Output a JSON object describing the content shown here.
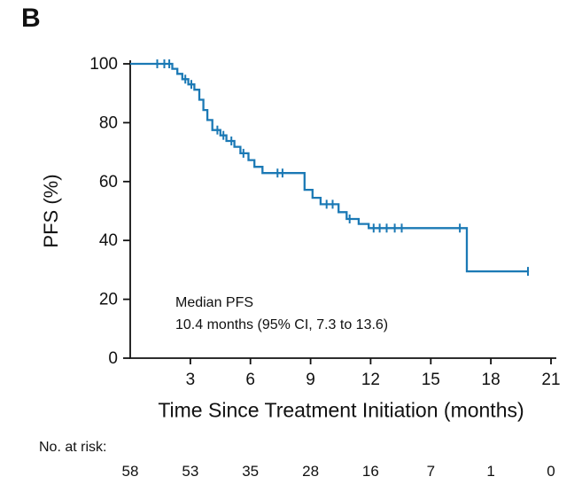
{
  "panel_label": "B",
  "chart_data": {
    "type": "line",
    "subtype": "kaplan-meier-step-curve",
    "title": "",
    "xlabel": "Time Since Treatment Initiation (months)",
    "ylabel": "PFS (%)",
    "xlim": [
      0,
      21.5
    ],
    "ylim": [
      0,
      105
    ],
    "x_ticks": [
      3,
      6,
      9,
      12,
      15,
      18,
      21
    ],
    "y_ticks": [
      0,
      20,
      40,
      60,
      80,
      100
    ],
    "grid": false,
    "legend": "none",
    "line_color": "#1b79b5",
    "axis_color": "#111111",
    "annotation": {
      "line1": "Median PFS",
      "line2": "10.4 months (95% CI, 7.3 to 13.6)"
    },
    "series": [
      {
        "name": "PFS",
        "steps": [
          [
            0,
            100
          ],
          [
            2.1,
            98.3
          ],
          [
            2.35,
            96.6
          ],
          [
            2.6,
            94.8
          ],
          [
            2.9,
            93
          ],
          [
            3.2,
            91.2
          ],
          [
            3.45,
            87.8
          ],
          [
            3.65,
            84.3
          ],
          [
            3.85,
            80.9
          ],
          [
            4.1,
            77.5
          ],
          [
            4.5,
            75.7
          ],
          [
            4.8,
            73.8
          ],
          [
            5.2,
            71.8
          ],
          [
            5.5,
            69.6
          ],
          [
            5.9,
            67.3
          ],
          [
            6.2,
            65.0
          ],
          [
            6.6,
            62.9
          ],
          [
            8.7,
            57.2
          ],
          [
            9.1,
            54.5
          ],
          [
            9.5,
            52.3
          ],
          [
            10.4,
            49.6
          ],
          [
            10.8,
            47.3
          ],
          [
            11.4,
            45.6
          ],
          [
            11.9,
            44.2
          ],
          [
            16.8,
            29.5
          ]
        ],
        "end_x": 19.9,
        "censors": [
          1.35,
          1.7,
          1.95,
          2.75,
          3.05,
          4.35,
          4.65,
          5.05,
          5.65,
          7.35,
          7.6,
          9.8,
          10.1,
          10.95,
          12.15,
          12.45,
          12.8,
          13.2,
          13.55,
          16.45,
          19.85
        ]
      }
    ],
    "risk_table": {
      "label": "No. at risk:",
      "times": [
        0,
        3,
        6,
        9,
        12,
        15,
        18,
        21
      ],
      "values": [
        58,
        53,
        35,
        28,
        16,
        7,
        1,
        0
      ]
    }
  }
}
